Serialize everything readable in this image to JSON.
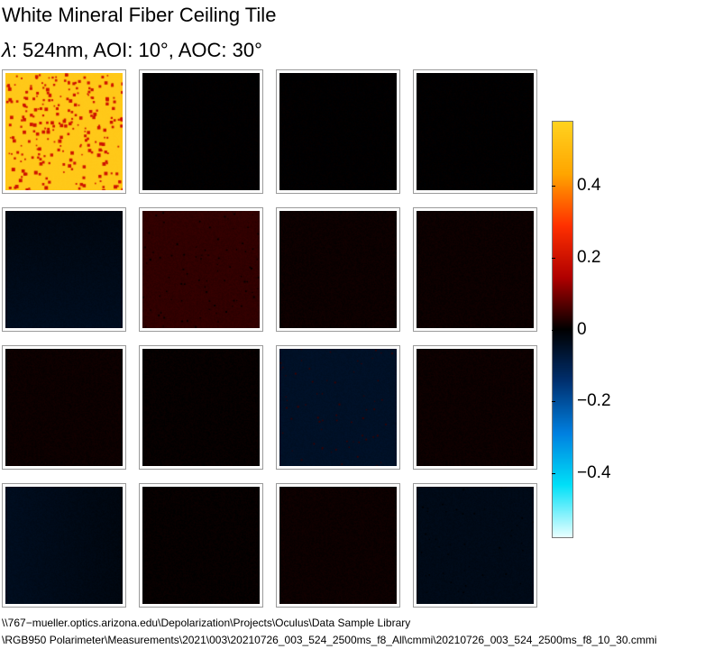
{
  "header": {
    "title": "White Mineral Fiber Ceiling Tile",
    "subtitle_symbol": "λ",
    "subtitle_rest": ": 524nm, AOI: 10°, AOC: 30°"
  },
  "chart_data": {
    "type": "heatmap",
    "title": "White Mineral Fiber Ceiling Tile",
    "subtitle": "λ: 524nm, AOI: 10°, AOC: 30°",
    "rows": 4,
    "cols": 4,
    "color_range": [
      -0.58,
      0.58
    ],
    "colorbar_ticks": [
      0.4,
      0.2,
      0,
      -0.2,
      -0.4
    ],
    "colorbar_tick_labels": [
      "0.4",
      "0.2",
      "0",
      "−0.2",
      "−0.4"
    ],
    "colorbar_colors": [
      "#ffd21f",
      "#ffa500",
      "#ff3000",
      "#b00000",
      "#000000",
      "#003070",
      "#0080e0",
      "#00e0f8",
      "#e8ffff"
    ],
    "element_mean_values": [
      [
        0.55,
        0.0,
        0.0,
        0.0
      ],
      [
        -0.02,
        0.04,
        0.01,
        0.01
      ],
      [
        0.01,
        0.005,
        -0.05,
        0.01
      ],
      [
        -0.02,
        0.005,
        0.01,
        -0.03
      ]
    ],
    "speckle_values": [
      [
        0.2,
        null,
        null,
        null
      ],
      [
        null,
        0.0,
        null,
        null
      ],
      [
        null,
        null,
        0.05,
        null
      ],
      [
        null,
        null,
        null,
        0.0
      ]
    ],
    "speckle_density": [
      [
        0.06,
        0,
        0,
        0
      ],
      [
        0,
        0.02,
        0,
        0
      ],
      [
        0,
        0,
        0.015,
        0
      ],
      [
        0,
        0,
        0,
        0.01
      ]
    ],
    "colors": {
      "cell_border": "#9a9a9a",
      "background": "#ffffff"
    }
  },
  "footer": {
    "path_line1": "\\\\767−mueller.optics.arizona.edu\\Depolarization\\Projects\\Oculus\\Data Sample Library",
    "path_line2": "\\RGB950 Polarimeter\\Measurements\\2021\\003\\20210726_003_524_2500ms_f8_All\\cmmi\\20210726_003_524_2500ms_f8_10_30.cmmi"
  }
}
